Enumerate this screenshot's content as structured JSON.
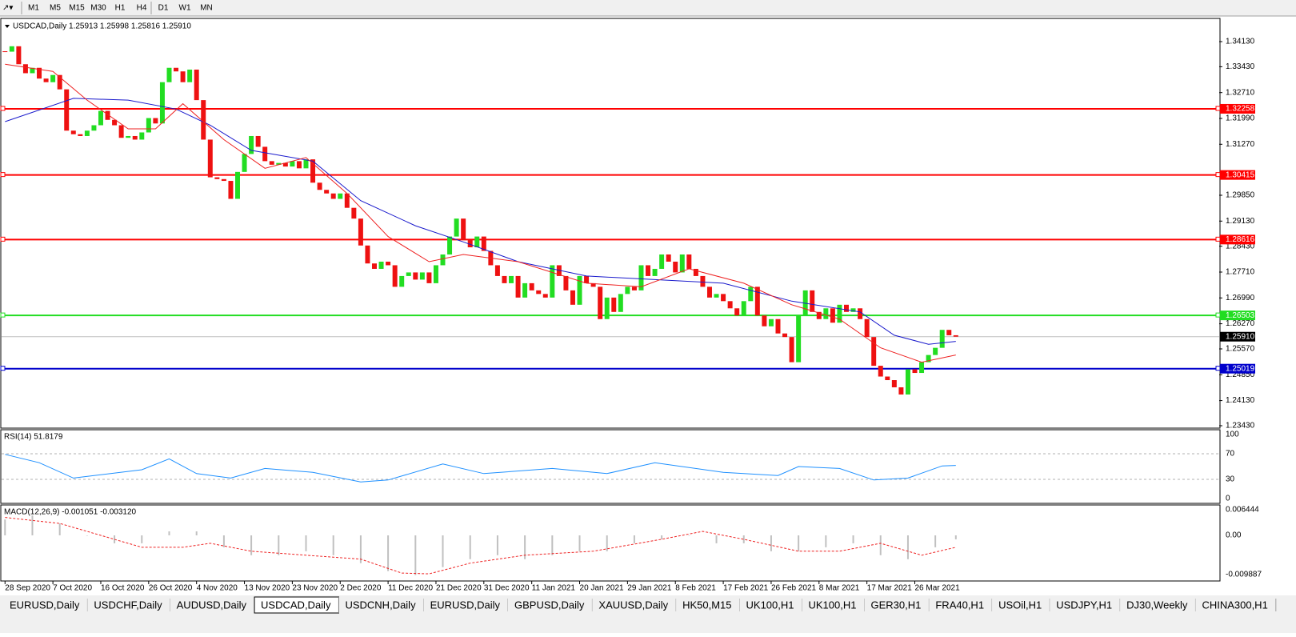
{
  "toolbar": {
    "timeframes": [
      "M1",
      "M5",
      "M15",
      "M30",
      "H1",
      "H4",
      "D1",
      "W1",
      "MN"
    ]
  },
  "tabs": [
    "EURUSD,Daily",
    "USDCHF,Daily",
    "AUDUSD,Daily",
    "USDCAD,Daily",
    "USDCNH,Daily",
    "EURUSD,Daily",
    "GBPUSD,Daily",
    "XAUUSD,Daily",
    "HK50,M15",
    "UK100,H1",
    "UK100,H1",
    "GER30,H1",
    "FRA40,H1",
    "USOil,H1",
    "USDJPY,H1",
    "DJ30,Weekly",
    "CHINA300,H1"
  ],
  "active_tab": 3,
  "chart_data": {
    "type": "candlestick",
    "title": "USDCAD,Daily  1.25913 1.25998 1.25816 1.25910",
    "up_color": "#22dd22",
    "down_color": "#ee1111",
    "closes": [
      1.3385,
      1.34,
      1.335,
      1.3325,
      1.334,
      1.331,
      1.33,
      1.332,
      1.328,
      1.3165,
      1.3155,
      1.315,
      1.3165,
      1.318,
      1.322,
      1.3195,
      1.318,
      1.3145,
      1.315,
      1.314,
      1.316,
      1.32,
      1.3185,
      1.33,
      1.334,
      1.333,
      1.33,
      1.3335,
      1.325,
      1.314,
      1.3035,
      1.303,
      1.3025,
      1.2975,
      1.305,
      1.31,
      1.315,
      1.312,
      1.308,
      1.307,
      1.3075,
      1.3065,
      1.308,
      1.306,
      1.3085,
      1.302,
      1.3,
      1.299,
      1.2975,
      1.299,
      1.295,
      1.292,
      1.2845,
      1.2795,
      1.278,
      1.28,
      1.279,
      1.273,
      1.276,
      1.277,
      1.275,
      1.277,
      1.274,
      1.279,
      1.282,
      1.287,
      1.292,
      1.286,
      1.284,
      1.287,
      1.283,
      1.279,
      1.276,
      1.274,
      1.276,
      1.27,
      1.274,
      1.272,
      1.271,
      1.27,
      1.279,
      1.276,
      1.272,
      1.268,
      1.276,
      1.274,
      1.273,
      1.264,
      1.27,
      1.266,
      1.271,
      1.273,
      1.272,
      1.279,
      1.276,
      1.278,
      1.282,
      1.28,
      1.277,
      1.282,
      1.278,
      1.276,
      1.273,
      1.27,
      1.271,
      1.269,
      1.267,
      1.265,
      1.269,
      1.273,
      1.265,
      1.262,
      1.264,
      1.26,
      1.259,
      1.252,
      1.265,
      1.272,
      1.266,
      1.264,
      1.267,
      1.263,
      1.268,
      1.266,
      1.267,
      1.264,
      1.259,
      1.251,
      1.248,
      1.247,
      1.245,
      1.243,
      1.25,
      1.249,
      1.252,
      1.254,
      1.256,
      1.261,
      1.2595,
      1.2591
    ],
    "xlim": [
      -0.5,
      177.5
    ],
    "ylim": [
      1.23385,
      1.34754
    ],
    "yticks": [
      {
        "value": 1.3413,
        "label": "1.34130"
      },
      {
        "value": 1.3343,
        "label": "1.33430"
      },
      {
        "value": 1.3271,
        "label": "1.32710"
      },
      {
        "value": 1.3199,
        "label": "1.31990"
      },
      {
        "value": 1.3127,
        "label": "1.31270"
      },
      {
        "value": 1.2985,
        "label": "1.29850"
      },
      {
        "value": 1.2913,
        "label": "1.29130"
      },
      {
        "value": 1.2843,
        "label": "1.28430"
      },
      {
        "value": 1.2771,
        "label": "1.27710"
      },
      {
        "value": 1.2699,
        "label": "1.26990"
      },
      {
        "value": 1.2627,
        "label": "1.26270"
      },
      {
        "value": 1.2557,
        "label": "1.25570"
      },
      {
        "value": 1.2485,
        "label": "1.24850"
      },
      {
        "value": 1.2413,
        "label": "1.24130"
      },
      {
        "value": 1.2343,
        "label": "1.23430"
      }
    ],
    "xticks": [
      {
        "value": 0,
        "label": "28 Sep 2020"
      },
      {
        "value": 7,
        "label": "7 Oct 2020"
      },
      {
        "value": 14,
        "label": "16 Oct 2020"
      },
      {
        "value": 21,
        "label": "26 Oct 2020"
      },
      {
        "value": 28,
        "label": "4 Nov 2020"
      },
      {
        "value": 35,
        "label": "13 Nov 2020"
      },
      {
        "value": 42,
        "label": "23 Nov 2020"
      },
      {
        "value": 49,
        "label": "2 Dec 2020"
      },
      {
        "value": 56,
        "label": "11 Dec 2020"
      },
      {
        "value": 63,
        "label": "21 Dec 2020"
      },
      {
        "value": 70,
        "label": "31 Dec 2020"
      },
      {
        "value": 77,
        "label": "11 Jan 2021"
      },
      {
        "value": 84,
        "label": "20 Jan 2021"
      },
      {
        "value": 91,
        "label": "29 Jan 2021"
      },
      {
        "value": 98,
        "label": "8 Feb 2021"
      },
      {
        "value": 105,
        "label": "17 Feb 2021"
      },
      {
        "value": 112,
        "label": "26 Feb 2021"
      },
      {
        "value": 119,
        "label": "8 Mar 2021"
      },
      {
        "value": 126,
        "label": "17 Mar 2021"
      },
      {
        "value": 133,
        "label": "26 Mar 2021"
      }
    ],
    "ma": [
      {
        "color": "#1a1acc",
        "x": [
          0,
          10,
          18,
          25,
          30,
          36,
          45,
          52,
          60,
          67,
          75,
          85,
          95,
          105,
          115,
          125,
          130,
          135,
          139
        ],
        "values": [
          1.319,
          1.3255,
          1.325,
          1.3225,
          1.318,
          1.311,
          1.308,
          1.297,
          1.29,
          1.2855,
          1.28,
          1.276,
          1.275,
          1.274,
          1.269,
          1.266,
          1.2595,
          1.257,
          1.2578
        ]
      },
      {
        "color": "#ee2222",
        "x": [
          0,
          7,
          12,
          18,
          22,
          26,
          32,
          38,
          44,
          50,
          56,
          62,
          67,
          75,
          85,
          93,
          100,
          108,
          115,
          122,
          128,
          134,
          139
        ],
        "values": [
          1.335,
          1.333,
          1.325,
          1.317,
          1.317,
          1.324,
          1.314,
          1.306,
          1.309,
          1.299,
          1.287,
          1.28,
          1.282,
          1.28,
          1.274,
          1.273,
          1.278,
          1.274,
          1.268,
          1.264,
          1.256,
          1.252,
          1.254
        ]
      }
    ],
    "levels": [
      {
        "value": 1.32258,
        "color": "#ff0000"
      },
      {
        "value": 1.30415,
        "color": "#ff0000"
      },
      {
        "value": 1.28616,
        "color": "#ff0000"
      },
      {
        "value": 1.26503,
        "color": "#22dd22"
      },
      {
        "value": {
          "value": 1.2591,
          "label": "1.25910"
        },
        "color": "#c0c0c0",
        "tag_color": "#000000"
      },
      {
        "value": 1.25019,
        "color": "#0000cc"
      }
    ],
    "rsi": {
      "title": "RSI(14) 51.8179",
      "color": "#1e90ff",
      "ylim": [
        0,
        100
      ],
      "yticks": [
        100,
        70,
        30,
        0
      ],
      "dashed": [
        70,
        30
      ],
      "x": [
        0,
        5,
        10,
        20,
        24,
        28,
        33,
        38,
        45,
        52,
        56,
        64,
        70,
        80,
        88,
        95,
        105,
        113,
        116,
        122,
        127,
        132,
        137,
        139
      ],
      "values": [
        69,
        56,
        32,
        45,
        62,
        39,
        32,
        47,
        41,
        26,
        29,
        54,
        39,
        47,
        39,
        56,
        41,
        36,
        50,
        47,
        29,
        32,
        51,
        51.8
      ]
    },
    "macd": {
      "title": "MACD(12,26,9) -0.001051 -0.003120",
      "bar_color": "#c0c0c0",
      "signal_color": "#ee2222",
      "ylim": [
        -0.01129,
        0.00745
      ],
      "yticks": [
        0.006444,
        {
          "value": 0,
          "label": "0.00"
        },
        -0.009887
      ],
      "bar_x": [
        0,
        4,
        8,
        12,
        16,
        20,
        24,
        28,
        32,
        36,
        40,
        44,
        48,
        52,
        56,
        60,
        64,
        68,
        72,
        76,
        80,
        84,
        88,
        92,
        96,
        100,
        104,
        108,
        112,
        116,
        120,
        124,
        128,
        132,
        136,
        139
      ],
      "bars": [
        0.004,
        0.005,
        0.003,
        0,
        -0.002,
        -0.002,
        0.001,
        0.001,
        -0.003,
        -0.005,
        -0.005,
        -0.004,
        -0.005,
        -0.007,
        -0.009,
        -0.01,
        -0.008,
        -0.006,
        -0.005,
        -0.006,
        -0.005,
        -0.004,
        -0.004,
        -0.002,
        -0.001,
        0,
        -0.002,
        -0.002,
        -0.004,
        -0.004,
        -0.003,
        -0.002,
        -0.005,
        -0.006,
        -0.003,
        -0.001
      ],
      "signal_x": [
        0,
        8,
        14,
        20,
        26,
        30,
        36,
        44,
        52,
        58,
        62,
        68,
        76,
        86,
        96,
        102,
        108,
        116,
        122,
        128,
        134,
        139
      ],
      "signal": [
        0.0045,
        0.003,
        0,
        -0.003,
        -0.003,
        -0.002,
        -0.004,
        -0.005,
        -0.006,
        -0.0095,
        -0.0097,
        -0.007,
        -0.005,
        -0.004,
        -0.001,
        0.001,
        -0.001,
        -0.004,
        -0.004,
        -0.002,
        -0.005,
        -0.003
      ]
    }
  }
}
